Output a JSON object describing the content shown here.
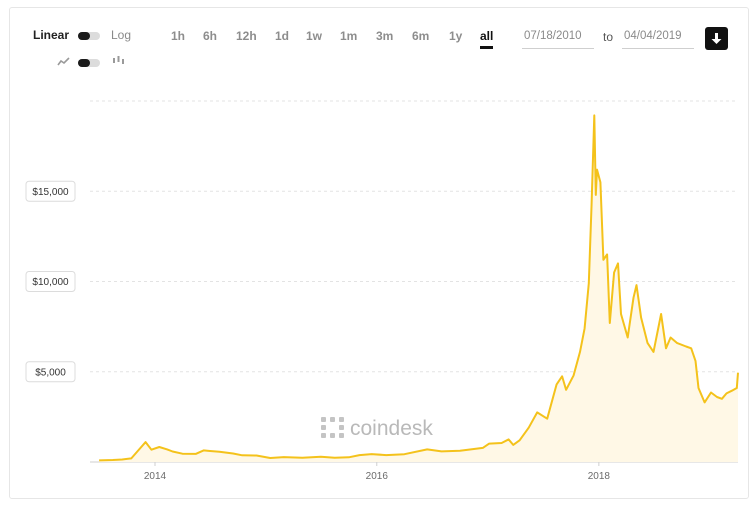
{
  "toolbar": {
    "scale_linear": "Linear",
    "scale_log": "Log",
    "ranges": [
      "1h",
      "6h",
      "12h",
      "1d",
      "1w",
      "1m",
      "3m",
      "6m",
      "1y",
      "all"
    ],
    "active_range": "all",
    "date_from": "07/18/2010",
    "date_to": "04/04/2019",
    "to_label": "to",
    "icons": {
      "line_mode": "line-chart-icon",
      "candle_mode": "candlestick-icon",
      "download": "download-icon"
    }
  },
  "watermark": "coindesk",
  "colors": {
    "line": "#f4c21b",
    "area": "#fff8e6",
    "active_text": "#111111",
    "inactive_text": "#8d8d8d"
  },
  "chart_data": {
    "type": "area",
    "y_ticks": [
      "$5,000",
      "$10,000",
      "$15,000"
    ],
    "y_tick_values": [
      5000,
      10000,
      15000
    ],
    "x_ticks": [
      "2014",
      "2016",
      "2018"
    ],
    "x_tick_values": [
      "2014-01-01",
      "2016-01-01",
      "2018-01-01"
    ],
    "ylim": [
      0,
      20000
    ],
    "grid": true,
    "series": [
      {
        "x": [
          "2013-07-01",
          "2013-08-15",
          "2013-09-15",
          "2013-10-15",
          "2013-11-15",
          "2013-12-01",
          "2013-12-20",
          "2014-01-15",
          "2014-02-10",
          "2014-02-28",
          "2014-04-01",
          "2014-05-15",
          "2014-06-10",
          "2014-07-01",
          "2014-08-01",
          "2014-09-15",
          "2014-10-15",
          "2014-12-01",
          "2015-01-15",
          "2015-03-01",
          "2015-05-01",
          "2015-07-01",
          "2015-08-15",
          "2015-10-01",
          "2015-11-05",
          "2015-12-15",
          "2016-02-01",
          "2016-04-01",
          "2016-06-15",
          "2016-08-01",
          "2016-10-01",
          "2016-12-15",
          "2017-01-05",
          "2017-02-15",
          "2017-03-10",
          "2017-03-25",
          "2017-04-15",
          "2017-05-15",
          "2017-06-12",
          "2017-07-15",
          "2017-08-15",
          "2017-09-02",
          "2017-09-15",
          "2017-10-10",
          "2017-10-31",
          "2017-11-15",
          "2017-11-29",
          "2017-12-08",
          "2017-12-17",
          "2017-12-22",
          "2017-12-26",
          "2018-01-06",
          "2018-01-16",
          "2018-01-28",
          "2018-02-06",
          "2018-02-20",
          "2018-03-05",
          "2018-03-15",
          "2018-04-06",
          "2018-04-25",
          "2018-05-05",
          "2018-05-20",
          "2018-06-10",
          "2018-06-30",
          "2018-07-25",
          "2018-08-10",
          "2018-08-25",
          "2018-09-15",
          "2018-10-15",
          "2018-11-01",
          "2018-11-15",
          "2018-11-25",
          "2018-12-15",
          "2019-01-05",
          "2019-01-25",
          "2019-02-10",
          "2019-02-25",
          "2019-03-15",
          "2019-03-31",
          "2019-04-04"
        ],
        "values": [
          90,
          110,
          140,
          200,
          800,
          1100,
          680,
          830,
          700,
          580,
          460,
          450,
          640,
          610,
          570,
          470,
          370,
          360,
          220,
          270,
          240,
          290,
          230,
          260,
          380,
          440,
          380,
          430,
          700,
          590,
          620,
          780,
          1020,
          1050,
          1250,
          950,
          1200,
          1900,
          2750,
          2400,
          4300,
          4750,
          4000,
          4800,
          6100,
          7400,
          9900,
          14300,
          19200,
          14800,
          16200,
          15500,
          11200,
          11500,
          7700,
          10500,
          11000,
          8200,
          6900,
          9100,
          9800,
          8000,
          6600,
          6100,
          8200,
          6300,
          6900,
          6600,
          6400,
          6300,
          5600,
          4100,
          3300,
          3850,
          3600,
          3500,
          3800,
          3950,
          4100,
          4950
        ]
      }
    ]
  }
}
